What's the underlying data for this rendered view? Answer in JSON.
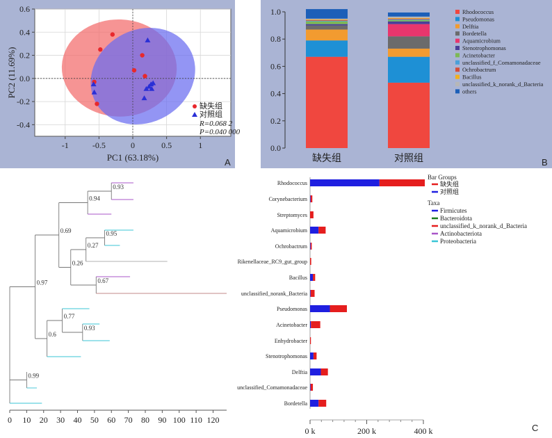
{
  "panels": {
    "A": "A",
    "B": "B",
    "C": "C"
  },
  "chart_data": [
    {
      "type": "scatter",
      "panel": "A",
      "xlabel": "PC1 (63.18%)",
      "ylabel": "PC2 (11.69%)",
      "xlim": [
        -1.45,
        1.45
      ],
      "ylim": [
        -0.5,
        0.6
      ],
      "xticks": [
        "-1",
        "-0.5",
        "0",
        "0.5",
        "1"
      ],
      "xtick_values": [
        -1,
        -0.5,
        0,
        0.5,
        1
      ],
      "yticks": [
        "0.6",
        "0.4",
        "0.2",
        "0.0",
        "-0.2",
        "-0.4"
      ],
      "ytick_values": [
        0.6,
        0.4,
        0.2,
        0.0,
        -0.2,
        -0.4
      ],
      "grid": true,
      "colors": {
        "deficient": "#e8282c",
        "control": "#2a2fd6",
        "ellipse_red": "#f26b6b",
        "ellipse_blue": "#6a6cf0"
      },
      "series": [
        {
          "name": "缺失组",
          "marker": "circle",
          "x": [
            -0.3,
            -0.48,
            0.14,
            0.02,
            -0.57,
            -0.53,
            0.18
          ],
          "y": [
            0.38,
            0.25,
            0.2,
            0.07,
            -0.03,
            -0.22,
            0.02
          ]
        },
        {
          "name": "对照组",
          "marker": "triangle",
          "x": [
            0.22,
            -0.58,
            -0.57,
            0.17,
            0.24,
            0.27,
            0.3,
            0.28,
            0.2
          ],
          "y": [
            0.33,
            -0.05,
            -0.12,
            -0.17,
            -0.07,
            -0.05,
            -0.04,
            -0.09,
            -0.09
          ]
        }
      ],
      "ellipses": [
        {
          "name": "缺失组",
          "cx": -0.2,
          "cy": 0.09,
          "rx": 0.85,
          "ry": 0.42,
          "angle": 2
        },
        {
          "name": "对照组",
          "cx": 0.15,
          "cy": 0.02,
          "rx": 0.8,
          "ry": 0.4,
          "angle": -30
        }
      ],
      "legend": {
        "placement": "bottom-right",
        "items": [
          "缺失组",
          "对照组"
        ],
        "stats": [
          "R=0.068 2",
          "P=0.040 000"
        ]
      }
    },
    {
      "type": "bar",
      "panel": "B",
      "stacked": true,
      "categories": [
        "缺失组",
        "对照组"
      ],
      "ylim": [
        0,
        1
      ],
      "yticks": [
        "0.0",
        "0.2",
        "0.4",
        "0.6",
        "0.8",
        "1.0"
      ],
      "ytick_values": [
        0,
        0.2,
        0.4,
        0.6,
        0.8,
        1.0
      ],
      "series": [
        {
          "name": "Rhodococcus",
          "color": "#f0473f",
          "values": [
            0.67,
            0.48
          ]
        },
        {
          "name": "Pseudomonas",
          "color": "#1e90d5",
          "values": [
            0.12,
            0.19
          ]
        },
        {
          "name": "Delftia",
          "color": "#f29b30",
          "values": [
            0.08,
            0.06
          ]
        },
        {
          "name": "Bordetella",
          "color": "#6b6b6b",
          "values": [
            0.03,
            0.09
          ]
        },
        {
          "name": "Aquamicrobium",
          "color": "#e8366d",
          "values": [
            0.0,
            0.09
          ]
        },
        {
          "name": "Stenotrophomonas",
          "color": "#4b3f99",
          "values": [
            0.01,
            0.02
          ]
        },
        {
          "name": "Acinetobacter",
          "color": "#7db955",
          "values": [
            0.02,
            0.01
          ]
        },
        {
          "name": "unclassified_f_Comamonadaceae",
          "color": "#4aa0d9",
          "values": [
            0.005,
            0.005
          ]
        },
        {
          "name": "Ochrobactrum",
          "color": "#d44d3a",
          "values": [
            0.005,
            0.005
          ]
        },
        {
          "name": "Bacillus",
          "color": "#f2b01e",
          "values": [
            0.005,
            0.005
          ]
        },
        {
          "name": "unclassified_k_norank_d_Bacteria",
          "color": "#b7b7b7",
          "values": [
            0.005,
            0.01
          ]
        },
        {
          "name": "others",
          "color": "#1c5fb8",
          "values": [
            0.07,
            0.03
          ]
        }
      ],
      "legend": {
        "placement": "right"
      }
    },
    {
      "type": "tree",
      "panel": "C-tree",
      "xticks": [
        "0",
        "10",
        "20",
        "30",
        "40",
        "50",
        "60",
        "70",
        "80",
        "90",
        "100",
        "110",
        "120"
      ],
      "xtick_values": [
        0,
        10,
        20,
        30,
        40,
        50,
        60,
        70,
        80,
        90,
        100,
        110,
        120
      ],
      "xlim": [
        0,
        128
      ],
      "leaves": [
        {
          "y": 263,
          "depth": 73,
          "color": "#a855c8"
        },
        {
          "y": 287,
          "depth": 73,
          "color": "#a855c8"
        },
        {
          "y": 308,
          "depth": 60,
          "color": "#a855c8"
        },
        {
          "y": 331,
          "depth": 73,
          "color": "#39c5d6"
        },
        {
          "y": 353,
          "depth": 65,
          "color": "#39c5d6"
        },
        {
          "y": 376,
          "depth": 93,
          "color": "#b0b0b0"
        },
        {
          "y": 398,
          "depth": 71,
          "color": "#a855c8"
        },
        {
          "y": 422,
          "depth": 128,
          "color": "#c08a8a"
        },
        {
          "y": 444,
          "depth": 47,
          "color": "#39c5d6"
        },
        {
          "y": 466,
          "depth": 53,
          "color": "#39c5d6"
        },
        {
          "y": 490,
          "depth": 59,
          "color": "#39c5d6"
        },
        {
          "y": 513,
          "depth": 42,
          "color": "#39c5d6"
        },
        {
          "y": 535,
          "depth": 10,
          "color": "#39c5d6"
        },
        {
          "y": 558,
          "depth": 16,
          "color": "#39c5d6"
        },
        {
          "y": 580,
          "depth": 19,
          "color": "#39c5d6"
        }
      ],
      "nodes": [
        {
          "label": "0.93",
          "depth": 60,
          "children": [
            0,
            1
          ]
        },
        {
          "label": "0.94",
          "depth": 46,
          "children": [
            "n0",
            2
          ]
        },
        {
          "label": "0.95",
          "depth": 56,
          "children": [
            3,
            4
          ]
        },
        {
          "label": "0.27",
          "depth": 45,
          "children": [
            "n2",
            5
          ]
        },
        {
          "label": "0.67",
          "depth": 51,
          "children": [
            6,
            7
          ]
        },
        {
          "label": "0.26",
          "depth": 36,
          "children": [
            "n3",
            "n4"
          ]
        },
        {
          "label": "0.69",
          "depth": 29,
          "children": [
            "n1",
            "n5"
          ]
        },
        {
          "label": "0.93",
          "depth": 43,
          "children": [
            9,
            10
          ]
        },
        {
          "label": "0.77",
          "depth": 31,
          "children": [
            8,
            "n7"
          ]
        },
        {
          "label": "0.6",
          "depth": 22,
          "children": [
            "n8",
            11
          ]
        },
        {
          "label": "0.97",
          "depth": 15,
          "children": [
            "n6",
            "n9"
          ]
        },
        {
          "label": "0.99",
          "depth": 10,
          "children": [
            12,
            13
          ]
        },
        {
          "label": "",
          "depth": 0,
          "children": [
            "n10",
            "n11",
            14
          ]
        }
      ]
    },
    {
      "type": "bar",
      "panel": "C-bars",
      "orientation": "horizontal",
      "stacked": true,
      "categories": [
        "Rhodococcus",
        "Corynebacterium",
        "Streptomyces",
        "Aquamicrobium",
        "Ochrobactrum",
        "Rikenellaceae_RC9_gut_group",
        "Bacillus",
        "unclassified_norank_Bacteria",
        "Pseudomonas",
        "Acinetobacter",
        "Enhydrobacter",
        "Stenotrophomonas",
        "Delftia",
        "unclassified_Comamonadaceae",
        "Bordetella"
      ],
      "xlim": [
        0,
        400000
      ],
      "xticks": [
        "0 k",
        "200 k",
        "400 k"
      ],
      "xtick_values": [
        0,
        200000,
        400000
      ],
      "series": [
        {
          "name": "对照组",
          "color": "#1f1fe0",
          "values": [
            245000,
            2000,
            0,
            30000,
            2000,
            0,
            10000,
            2000,
            70000,
            3000,
            0,
            12000,
            38000,
            2000,
            30000
          ]
        },
        {
          "name": "缺失组",
          "color": "#e51e1e",
          "values": [
            160000,
            6000,
            12000,
            25000,
            4000,
            4000,
            8000,
            14000,
            60000,
            33000,
            3000,
            11000,
            25000,
            8000,
            27000
          ]
        }
      ],
      "legend": {
        "bar_groups_title": "Bar Groups",
        "bar_groups": [
          {
            "name": "缺失组",
            "color": "#e51e1e"
          },
          {
            "name": "对照组",
            "color": "#1f1fe0"
          }
        ],
        "taxa_title": "Taxa",
        "taxa": [
          {
            "name": "Firmicutes",
            "color": "#1f1fe0"
          },
          {
            "name": "Bacteroidota",
            "color": "#1b7a1b"
          },
          {
            "name": "unclassified_k_norank_d_Bacteria",
            "color": "#e51e1e"
          },
          {
            "name": "Actinobacteriota",
            "color": "#a855c8"
          },
          {
            "name": "Proteobacteria",
            "color": "#39c5d6"
          }
        ]
      }
    }
  ]
}
